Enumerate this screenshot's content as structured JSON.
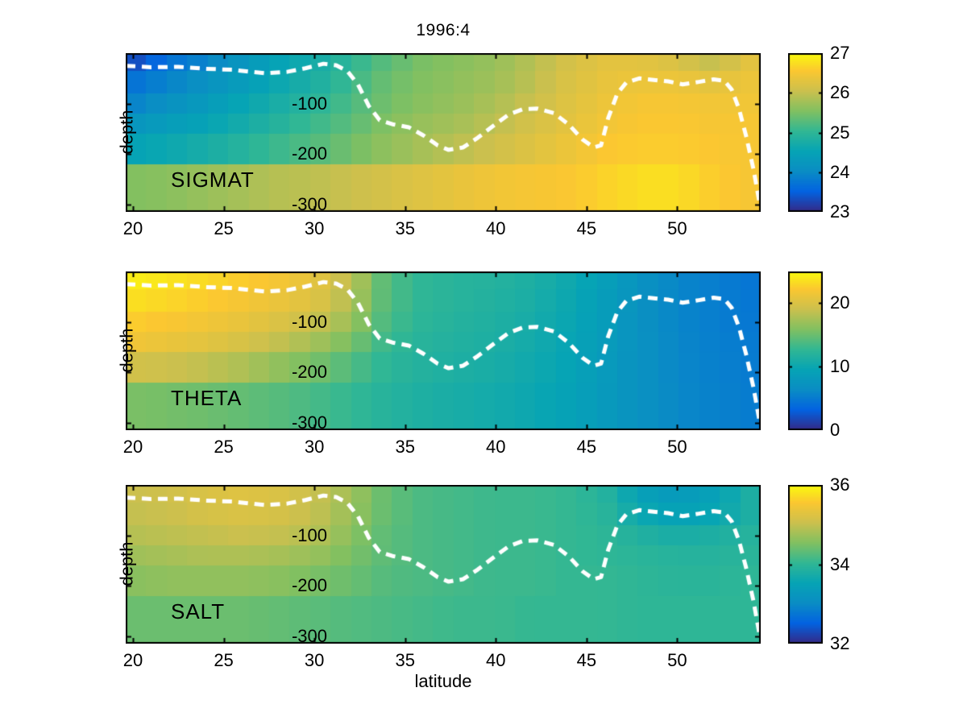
{
  "chart_data": {
    "type": "heatmap",
    "title": "1996:4",
    "xlabel": "latitude",
    "ylabel": "depth",
    "xlim": [
      19.6,
      54.6
    ],
    "ylim": [
      -315,
      0
    ],
    "xticks": [
      20,
      25,
      30,
      35,
      40,
      45,
      50
    ],
    "yticks": [
      -100,
      -200,
      -300
    ],
    "grid_lats": [
      20,
      22,
      24,
      26,
      28,
      30,
      32,
      34,
      36,
      38,
      40,
      42,
      44,
      46,
      48,
      50,
      52,
      54
    ],
    "depth_edges": [
      0,
      -35,
      -80,
      -120,
      -160,
      -220,
      -315
    ],
    "colormap": "parula",
    "colormap_stops": [
      [
        0.0,
        "#352a87"
      ],
      [
        0.127,
        "#0363e1"
      ],
      [
        0.254,
        "#0a8dc4"
      ],
      [
        0.381,
        "#06a4b5"
      ],
      [
        0.508,
        "#31b794"
      ],
      [
        0.635,
        "#81c061"
      ],
      [
        0.762,
        "#cbc04e"
      ],
      [
        0.889,
        "#fbc731"
      ],
      [
        1.0,
        "#f9fb0e"
      ]
    ],
    "panels": [
      {
        "label": "SIGMAT",
        "clim": [
          23,
          27
        ],
        "colorbar_ticks": [
          23,
          24,
          25,
          26,
          27
        ],
        "values": [
          [
            23.3,
            23.7,
            23.9,
            24.2,
            24.5,
            24.7,
            25.0,
            25.3,
            25.5,
            25.6,
            25.7,
            25.9,
            26.15,
            26.3,
            26.3,
            26.2,
            26.0,
            26.3
          ],
          [
            23.7,
            23.9,
            24.1,
            24.35,
            24.6,
            24.8,
            25.1,
            25.4,
            25.55,
            25.65,
            25.75,
            25.95,
            26.2,
            26.35,
            26.4,
            26.4,
            26.3,
            26.4
          ],
          [
            23.9,
            24.1,
            24.3,
            24.55,
            24.75,
            24.95,
            25.2,
            25.45,
            25.6,
            25.7,
            25.85,
            26.05,
            26.25,
            26.4,
            26.5,
            26.5,
            26.45,
            26.45
          ],
          [
            24.2,
            24.35,
            24.5,
            24.7,
            24.9,
            25.1,
            25.3,
            25.55,
            25.7,
            25.8,
            25.95,
            26.15,
            26.3,
            26.45,
            26.55,
            26.55,
            26.5,
            26.5
          ],
          [
            24.5,
            24.6,
            24.75,
            24.9,
            25.1,
            25.25,
            25.45,
            25.65,
            25.8,
            25.95,
            26.1,
            26.25,
            26.4,
            26.55,
            26.6,
            26.6,
            26.55,
            26.5
          ],
          [
            25.55,
            25.6,
            25.7,
            25.8,
            25.9,
            25.95,
            26.05,
            26.15,
            26.25,
            26.35,
            26.45,
            26.5,
            26.55,
            26.65,
            26.75,
            26.75,
            26.6,
            26.5
          ]
        ]
      },
      {
        "label": "THETA",
        "clim": [
          0,
          25
        ],
        "colorbar_ticks": [
          0,
          10,
          20
        ],
        "values": [
          [
            24.3,
            23.8,
            23.2,
            22.5,
            21.8,
            20.8,
            18.5,
            14.0,
            12.5,
            12.0,
            11.8,
            11.2,
            10.2,
            8.8,
            7.0,
            5.8,
            5.2,
            4.6
          ],
          [
            23.5,
            23.0,
            22.5,
            21.8,
            21.1,
            20.3,
            18.0,
            14.0,
            12.5,
            12.0,
            11.6,
            11.0,
            10.0,
            8.6,
            6.9,
            5.8,
            5.2,
            4.7
          ],
          [
            22.5,
            22.1,
            21.6,
            21.0,
            20.1,
            19.0,
            17.0,
            13.6,
            12.3,
            11.8,
            11.4,
            10.8,
            9.8,
            8.5,
            6.9,
            5.8,
            5.2,
            4.8
          ],
          [
            21.5,
            21.1,
            20.6,
            19.8,
            18.7,
            17.4,
            15.6,
            13.0,
            12.0,
            11.6,
            11.2,
            10.6,
            9.6,
            8.4,
            6.9,
            5.9,
            5.3,
            4.9
          ],
          [
            19.5,
            19.2,
            18.6,
            17.8,
            16.6,
            15.5,
            14.0,
            12.4,
            11.7,
            11.3,
            10.9,
            10.3,
            9.4,
            8.2,
            6.9,
            5.9,
            5.4,
            5.0
          ],
          [
            15.6,
            15.4,
            15.1,
            14.7,
            14.2,
            13.6,
            12.8,
            11.9,
            11.3,
            10.9,
            10.5,
            10.0,
            9.2,
            8.1,
            6.9,
            6.0,
            5.5,
            5.1
          ]
        ]
      },
      {
        "label": "SALT",
        "clim": [
          32,
          36
        ],
        "colorbar_ticks": [
          32,
          34,
          36
        ],
        "values": [
          [
            35.05,
            35.1,
            35.2,
            35.25,
            35.2,
            35.05,
            34.75,
            34.35,
            34.2,
            34.15,
            34.1,
            34.1,
            34.05,
            33.9,
            33.45,
            33.3,
            33.45,
            33.8
          ],
          [
            35.0,
            35.05,
            35.15,
            35.2,
            35.15,
            35.0,
            34.7,
            34.35,
            34.2,
            34.15,
            34.1,
            34.1,
            34.05,
            33.95,
            33.6,
            33.45,
            33.55,
            33.8
          ],
          [
            34.9,
            34.95,
            35.0,
            35.05,
            35.0,
            34.9,
            34.6,
            34.3,
            34.2,
            34.15,
            34.1,
            34.1,
            34.05,
            34.0,
            33.85,
            33.75,
            33.8,
            33.9
          ],
          [
            34.75,
            34.8,
            34.85,
            34.85,
            34.8,
            34.7,
            34.5,
            34.3,
            34.2,
            34.15,
            34.1,
            34.1,
            34.05,
            34.0,
            33.95,
            33.9,
            33.9,
            33.95
          ],
          [
            34.6,
            34.65,
            34.65,
            34.65,
            34.6,
            34.5,
            34.4,
            34.25,
            34.2,
            34.15,
            34.1,
            34.1,
            34.05,
            34.05,
            34.0,
            33.95,
            33.95,
            34.0
          ],
          [
            34.4,
            34.4,
            34.4,
            34.4,
            34.35,
            34.3,
            34.25,
            34.2,
            34.15,
            34.1,
            34.1,
            34.05,
            34.05,
            34.05,
            34.0,
            34.0,
            34.0,
            34.0
          ]
        ]
      }
    ],
    "overlay_line": {
      "name": "mixed-layer-depth-contour",
      "color": "#ffffff",
      "style": "dashed",
      "points": [
        [
          19.6,
          -25
        ],
        [
          21.0,
          -28
        ],
        [
          22.5,
          -27
        ],
        [
          24.0,
          -31
        ],
        [
          25.5,
          -33
        ],
        [
          26.5,
          -37
        ],
        [
          27.3,
          -40
        ],
        [
          28.5,
          -37
        ],
        [
          29.5,
          -30
        ],
        [
          30.5,
          -21
        ],
        [
          31.2,
          -24
        ],
        [
          31.8,
          -35
        ],
        [
          32.4,
          -62
        ],
        [
          33.0,
          -105
        ],
        [
          33.6,
          -133
        ],
        [
          34.3,
          -141
        ],
        [
          35.2,
          -147
        ],
        [
          36.0,
          -163
        ],
        [
          36.8,
          -183
        ],
        [
          37.4,
          -192
        ],
        [
          38.2,
          -187
        ],
        [
          39.0,
          -168
        ],
        [
          39.8,
          -146
        ],
        [
          40.7,
          -122
        ],
        [
          41.5,
          -111
        ],
        [
          42.3,
          -110
        ],
        [
          43.2,
          -119
        ],
        [
          44.0,
          -141
        ],
        [
          44.8,
          -172
        ],
        [
          45.4,
          -187
        ],
        [
          45.8,
          -183
        ],
        [
          46.2,
          -128
        ],
        [
          46.7,
          -80
        ],
        [
          47.2,
          -58
        ],
        [
          47.9,
          -50
        ],
        [
          48.7,
          -53
        ],
        [
          49.5,
          -56
        ],
        [
          50.3,
          -62
        ],
        [
          51.2,
          -57
        ],
        [
          52.0,
          -52
        ],
        [
          52.6,
          -55
        ],
        [
          53.0,
          -72
        ],
        [
          53.4,
          -110
        ],
        [
          53.8,
          -165
        ],
        [
          54.2,
          -230
        ],
        [
          54.55,
          -300
        ]
      ]
    }
  }
}
